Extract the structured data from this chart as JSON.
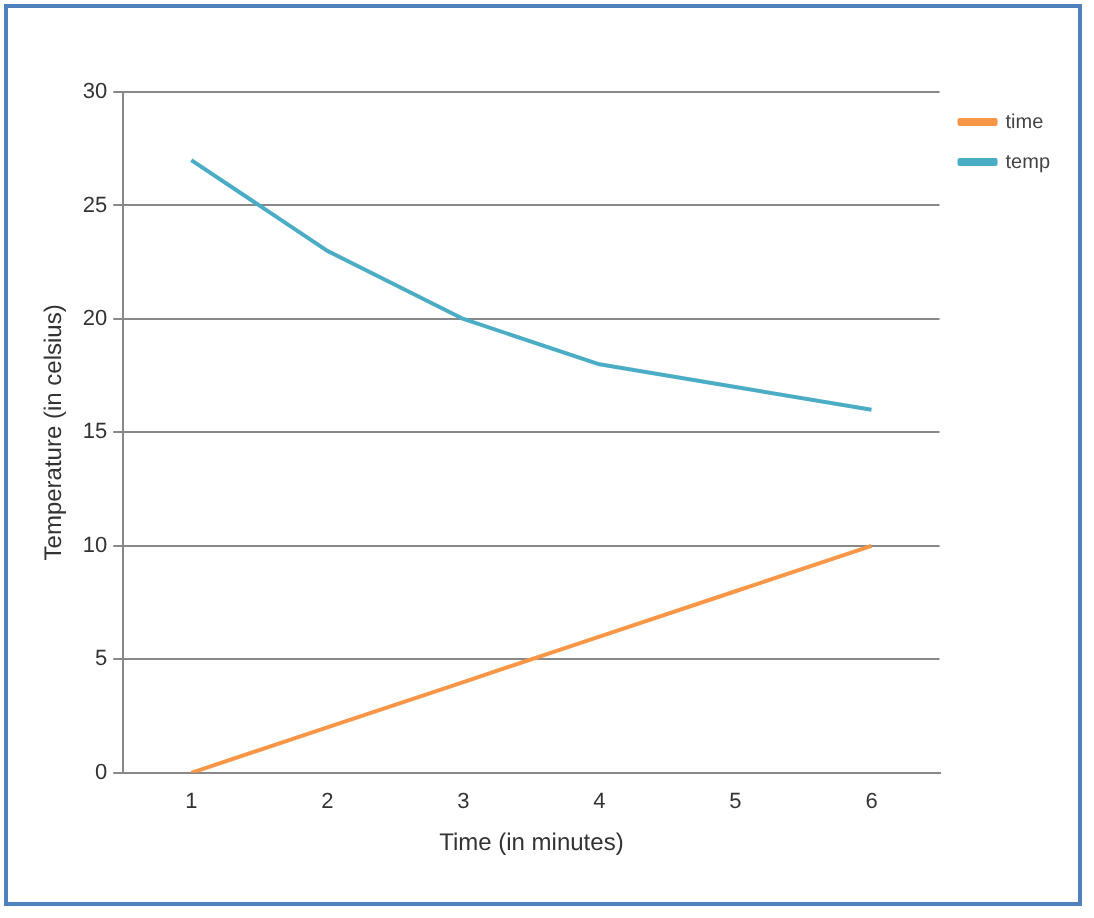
{
  "chart_data": {
    "type": "line",
    "xlabel": "Time (in minutes)",
    "ylabel": "Temperature (in celsius)",
    "categories": [
      "1",
      "2",
      "3",
      "4",
      "5",
      "6"
    ],
    "series": [
      {
        "name": "time",
        "color": "#f79646",
        "values": [
          0,
          2,
          4,
          6,
          8,
          10
        ]
      },
      {
        "name": "temp",
        "color": "#4bacc6",
        "values": [
          27,
          23,
          20,
          18,
          17,
          16
        ]
      }
    ],
    "ylim": [
      0,
      30
    ],
    "yticks": [
      0,
      5,
      10,
      15,
      20,
      25,
      30
    ],
    "grid": "y",
    "legend": "top right",
    "marker": "none",
    "line_style": "solid"
  }
}
